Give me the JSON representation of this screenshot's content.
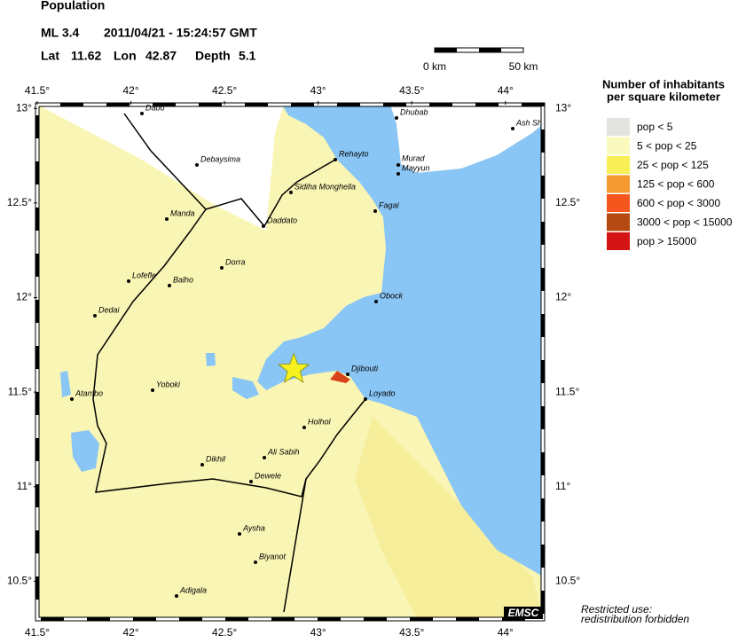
{
  "header": {
    "title": "Population",
    "magnitude": "ML 3.4",
    "datetime": "2011/04/21 - 15:24:57 GMT",
    "lat_label": "Lat",
    "lat": 11.62,
    "lon_label": "Lon",
    "lon": 42.87,
    "depth_label": "Depth",
    "depth": 5.1
  },
  "scale_bar": {
    "start": "0 km",
    "end": "50 km"
  },
  "map": {
    "lon_lim": [
      41.5,
      44.2
    ],
    "lat_lim": [
      10.3,
      13.02
    ],
    "lon_ticks": [
      {
        "value": 41.5,
        "label": "41.5°"
      },
      {
        "value": 42,
        "label": "42°"
      },
      {
        "value": 42.5,
        "label": "42.5°"
      },
      {
        "value": 43,
        "label": "43°"
      },
      {
        "value": 43.5,
        "label": "43.5°"
      },
      {
        "value": 44,
        "label": "44°"
      }
    ],
    "lat_ticks": [
      {
        "value": 13,
        "label": "13°"
      },
      {
        "value": 12.5,
        "label": "12.5°"
      },
      {
        "value": 12,
        "label": "12°"
      },
      {
        "value": 11.5,
        "label": "11.5°"
      },
      {
        "value": 11,
        "label": "11°"
      },
      {
        "value": 10.5,
        "label": "10.5°"
      }
    ],
    "cities": [
      "Dabu",
      "Debaysima",
      "Manda",
      "Lofefle",
      "Balho",
      "Dedai",
      "Dorra",
      "Daddato",
      "Sidiha Monghella",
      "Rehayto",
      "Dhubab",
      "Murad",
      "Mayyun",
      "Fagal",
      "Obock",
      "Djibouti",
      "Loyado",
      "Ash Sh",
      "Atambo",
      "Yoboki",
      "Holhol",
      "Ali Sabih",
      "Dikhil",
      "Dewele",
      "Aysha",
      "Biyanot",
      "Adigala"
    ],
    "credit": "EMSC"
  },
  "legend": {
    "title": [
      "Number of inhabitants",
      "per square kilometer"
    ],
    "items": [
      {
        "label": "pop < 5",
        "color": "#e3e3e0"
      },
      {
        "label": "5 < pop < 25",
        "color": "#fafabe"
      },
      {
        "label": "25 < pop < 125",
        "color": "#f7ef55"
      },
      {
        "label": "125 < pop < 600",
        "color": "#f59a30"
      },
      {
        "label": "600 < pop < 3000",
        "color": "#f5561e"
      },
      {
        "label": "3000 < pop < 15000",
        "color": "#b44a12"
      },
      {
        "label": "pop > 15000",
        "color": "#d41414"
      }
    ]
  },
  "footer": [
    "Restricted use:",
    "redistribution forbidden"
  ]
}
